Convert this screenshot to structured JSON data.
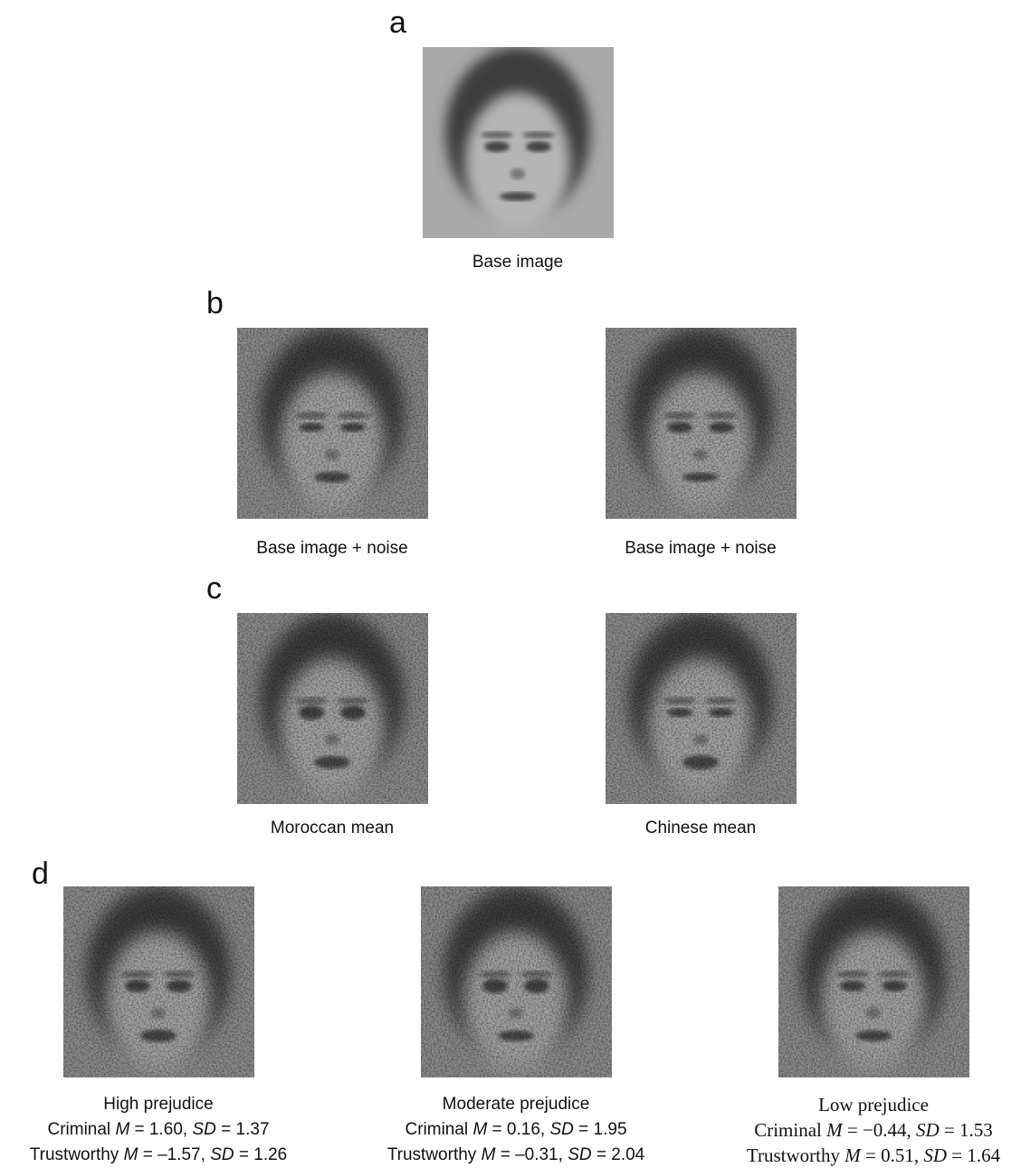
{
  "panels": [
    {
      "label": "a",
      "items": [
        {
          "caption": "Base image"
        }
      ]
    },
    {
      "label": "b",
      "items": [
        {
          "caption": "Base image + noise"
        },
        {
          "caption": "Base image + noise"
        }
      ]
    },
    {
      "label": "c",
      "items": [
        {
          "caption": "Moroccan mean"
        },
        {
          "caption": "Chinese mean"
        }
      ]
    },
    {
      "label": "d",
      "items": [
        {
          "caption": "High prejudice",
          "lines": [
            [
              "Criminal ",
              "M",
              " = 1.60, ",
              "SD",
              " = 1.37"
            ],
            [
              "Trustworthy ",
              "M",
              " = –1.57, ",
              "SD",
              " = 1.26"
            ]
          ]
        },
        {
          "caption": "Moderate prejudice",
          "lines": [
            [
              "Criminal ",
              "M",
              " = 0.16, ",
              "SD",
              " = 1.95"
            ],
            [
              "Trustworthy ",
              "M",
              " = –0.31, ",
              "SD",
              " = 2.04"
            ]
          ]
        },
        {
          "caption": "Low prejudice",
          "lines": [
            [
              "Criminal ",
              "M",
              " = −0.44, ",
              "SD",
              " = 1.53"
            ],
            [
              "Trustworthy ",
              "M",
              " = 0.51, ",
              "SD",
              " = 1.64"
            ]
          ]
        }
      ]
    }
  ]
}
